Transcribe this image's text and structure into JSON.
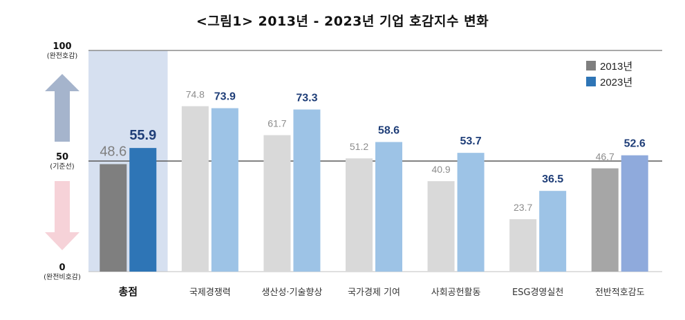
{
  "title": "<그림1> 2013년 - 2023년 기업 호감지수 변화",
  "colors": {
    "total_2013": "#7f7f7f",
    "total_2023": "#2e75b6",
    "cat_2013": "#d9d9d9",
    "cat_2023": "#9dc3e6",
    "last_2013": "#a6a6a6",
    "last_2023": "#8faadc",
    "highlight_bg": "#d6e0f0",
    "arrow_up": "#a5b4cc",
    "arrow_down": "#f6d2d8",
    "label_2023": "#1f3e78"
  },
  "y_ticks": [
    {
      "value": 100,
      "label": "100",
      "note": "(완전호감)"
    },
    {
      "value": 50,
      "label": "50",
      "note": "(기준선)"
    },
    {
      "value": 0,
      "label": "0",
      "note": "(완전비호감)"
    }
  ],
  "legend": [
    "2013년",
    "2023년"
  ],
  "chart_data": {
    "type": "bar",
    "title": "<그림1> 2013년 - 2023년 기업 호감지수 변화",
    "ylim": [
      0,
      100
    ],
    "categories": [
      "총점",
      "국제경쟁력",
      "생산성·기술향상",
      "국가경제 기여",
      "사회공헌활동",
      "ESG경영실천",
      "전반적호감도"
    ],
    "series": [
      {
        "name": "2013년",
        "values": [
          48.6,
          74.8,
          61.7,
          51.2,
          40.9,
          23.7,
          46.7
        ],
        "labels": [
          "48.6",
          "74.8",
          "61.7",
          "51.2",
          "40.9",
          "23.7",
          "46.7"
        ]
      },
      {
        "name": "2023년",
        "values": [
          55.9,
          73.9,
          73.3,
          58.6,
          53.7,
          36.5,
          52.6
        ],
        "labels": [
          "55.9",
          "73.9",
          "73.3",
          "58.6",
          "53.7",
          "36.5",
          "52.6"
        ]
      }
    ],
    "legend_position": "top-right",
    "reference_line": 50
  }
}
